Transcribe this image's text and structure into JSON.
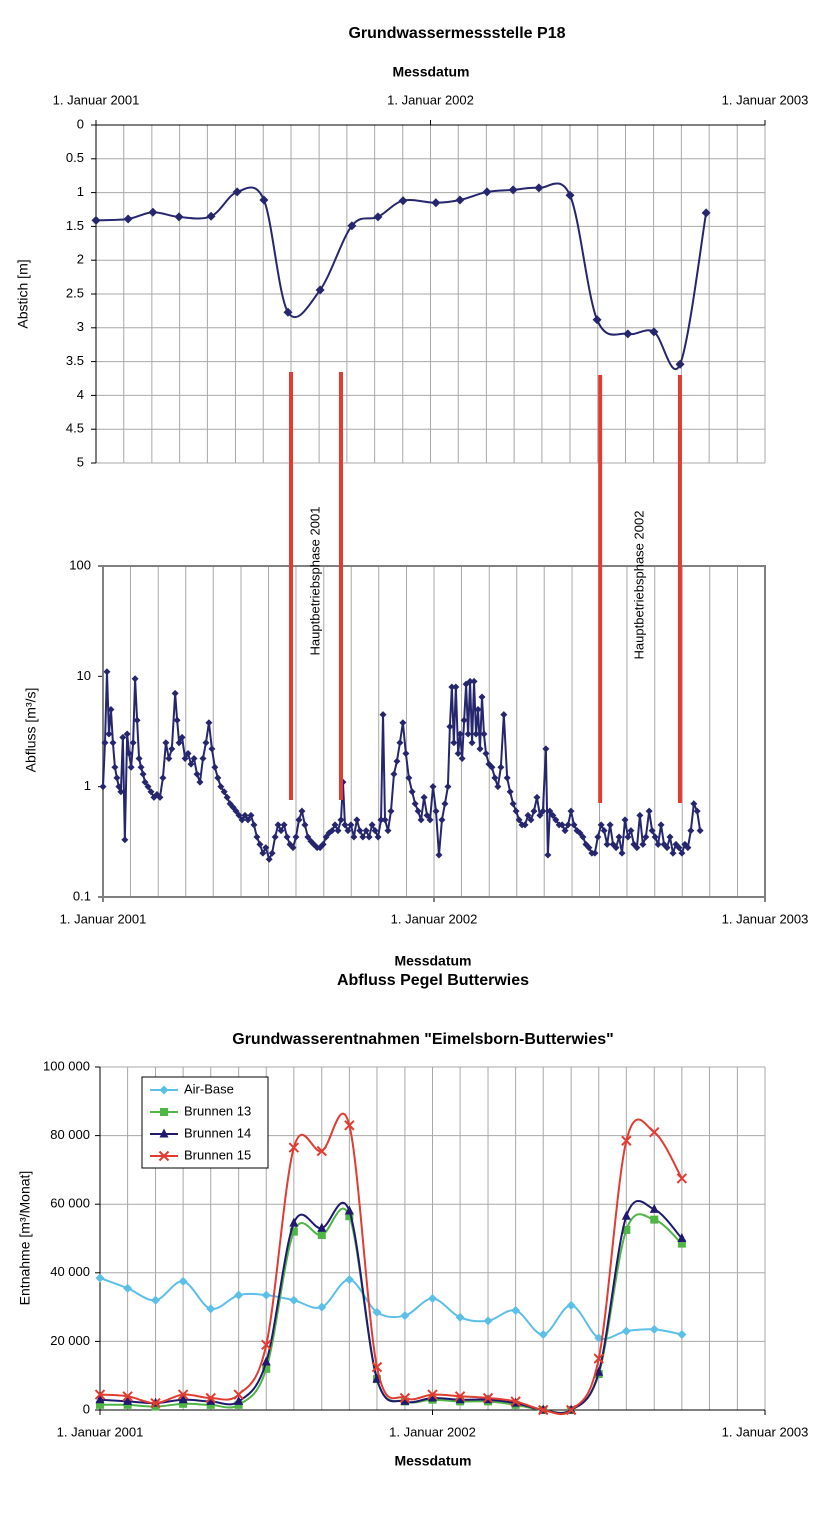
{
  "chart_data": [
    {
      "type": "line",
      "title": "Grundwassermessstelle P18",
      "xlabel": "Messdatum",
      "ylabel": "Abstich [m]",
      "x": [
        2001.0,
        2001.096,
        2001.17,
        2001.248,
        2001.344,
        2001.422,
        2001.502,
        2001.574,
        2001.67,
        2001.765,
        2001.843,
        2001.918,
        2002.016,
        2002.088,
        2002.169,
        2002.247,
        2002.324,
        2002.417,
        2002.498,
        2002.59,
        2002.668,
        2002.746,
        2002.824
      ],
      "values": [
        1.41,
        1.39,
        1.29,
        1.36,
        1.35,
        0.99,
        1.11,
        2.77,
        2.44,
        1.49,
        1.36,
        1.12,
        1.15,
        1.11,
        0.99,
        0.96,
        0.93,
        1.04,
        2.88,
        3.09,
        3.06,
        3.54,
        1.3
      ],
      "color": "#26266e",
      "marker": "diamond",
      "smooth": true,
      "xlim": [
        2001,
        2003
      ],
      "xticks": [
        {
          "value": 2001,
          "label": "1. Januar 2001"
        },
        {
          "value": 2002,
          "label": "1. Januar 2002"
        },
        {
          "value": 2003,
          "label": "1. Januar 2003"
        }
      ],
      "xminorticks": [
        2001.083,
        2001.167,
        2001.25,
        2001.333,
        2001.417,
        2001.5,
        2001.583,
        2001.667,
        2001.75,
        2001.833,
        2001.917,
        2002.083,
        2002.167,
        2002.25,
        2002.333,
        2002.417,
        2002.5,
        2002.583,
        2002.667,
        2002.75,
        2002.833,
        2002.917
      ],
      "ylim": [
        5,
        0
      ],
      "yticks": [
        0,
        0.5,
        1,
        1.5,
        2,
        2.5,
        3,
        3.5,
        4,
        4.5,
        5
      ],
      "grid": true
    },
    {
      "type": "line",
      "title": "Abfluss Pegel Butterwies",
      "xlabel": "Messdatum",
      "ylabel": "Abfluss [m³/s]",
      "yscale": "log",
      "x": [
        2001.0,
        2001.006,
        2001.012,
        2001.018,
        2001.024,
        2001.03,
        2001.036,
        2001.042,
        2001.048,
        2001.054,
        2001.06,
        2001.066,
        2001.073,
        2001.079,
        2001.085,
        2001.091,
        2001.097,
        2001.103,
        2001.109,
        2001.115,
        2001.121,
        2001.127,
        2001.136,
        2001.145,
        2001.154,
        2001.163,
        2001.172,
        2001.181,
        2001.19,
        2001.199,
        2001.208,
        2001.218,
        2001.224,
        2001.23,
        2001.239,
        2001.248,
        2001.257,
        2001.266,
        2001.275,
        2001.284,
        2001.293,
        2001.302,
        2001.311,
        2001.32,
        2001.329,
        2001.338,
        2001.347,
        2001.356,
        2001.366,
        2001.375,
        2001.384,
        2001.393,
        2001.402,
        2001.411,
        2001.42,
        2001.429,
        2001.438,
        2001.447,
        2001.456,
        2001.465,
        2001.474,
        2001.483,
        2001.492,
        2001.502,
        2001.511,
        2001.52,
        2001.529,
        2001.538,
        2001.547,
        2001.556,
        2001.565,
        2001.574,
        2001.583,
        2001.592,
        2001.601,
        2001.61,
        2001.619,
        2001.628,
        2001.637,
        2001.647,
        2001.656,
        2001.665,
        2001.674,
        2001.683,
        2001.692,
        2001.701,
        2001.71,
        2001.719,
        2001.725,
        2001.731,
        2001.74,
        2001.749,
        2001.758,
        2001.767,
        2001.776,
        2001.785,
        2001.795,
        2001.804,
        2001.813,
        2001.822,
        2001.831,
        2001.84,
        2001.846,
        2001.852,
        2001.861,
        2001.87,
        2001.879,
        2001.888,
        2001.897,
        2001.906,
        2001.915,
        2001.924,
        2001.934,
        2001.943,
        2001.952,
        2001.961,
        2001.97,
        2001.979,
        2001.988,
        2001.997,
        2002.006,
        2002.015,
        2002.024,
        2002.033,
        2002.042,
        2002.048,
        2002.054,
        2002.06,
        2002.066,
        2002.073,
        2002.079,
        2002.085,
        2002.091,
        2002.097,
        2002.103,
        2002.109,
        2002.115,
        2002.121,
        2002.127,
        2002.133,
        2002.139,
        2002.145,
        2002.151,
        2002.157,
        2002.166,
        2002.175,
        2002.184,
        2002.193,
        2002.202,
        2002.211,
        2002.221,
        2002.23,
        2002.239,
        2002.248,
        2002.257,
        2002.266,
        2002.275,
        2002.284,
        2002.293,
        2002.302,
        2002.311,
        2002.32,
        2002.329,
        2002.338,
        2002.344,
        2002.35,
        2002.359,
        2002.368,
        2002.378,
        2002.387,
        2002.396,
        2002.405,
        2002.414,
        2002.423,
        2002.432,
        2002.441,
        2002.45,
        2002.459,
        2002.468,
        2002.477,
        2002.486,
        2002.495,
        2002.505,
        2002.514,
        2002.523,
        2002.532,
        2002.541,
        2002.55,
        2002.559,
        2002.568,
        2002.577,
        2002.586,
        2002.595,
        2002.604,
        2002.613,
        2002.622,
        2002.631,
        2002.64,
        2002.65,
        2002.659,
        2002.668,
        2002.677,
        2002.686,
        2002.695,
        2002.704,
        2002.713,
        2002.722,
        2002.731,
        2002.74,
        2002.749,
        2002.758,
        2002.767,
        2002.776,
        2002.785,
        2002.795,
        2002.804
      ],
      "values": [
        1.0,
        2.5,
        11,
        3,
        5,
        2.5,
        1.5,
        1.2,
        1.0,
        0.9,
        2.8,
        0.33,
        3.0,
        2.0,
        1.5,
        2.5,
        9.5,
        4,
        1.8,
        1.5,
        1.3,
        1.1,
        1.0,
        0.9,
        0.8,
        0.85,
        0.8,
        1.2,
        2.5,
        1.8,
        2.2,
        7,
        4,
        2.5,
        2.8,
        1.8,
        2.0,
        1.6,
        1.8,
        1.3,
        1.1,
        1.8,
        2.5,
        3.8,
        2.2,
        1.5,
        1.2,
        1.0,
        0.9,
        0.8,
        0.7,
        0.65,
        0.6,
        0.55,
        0.5,
        0.55,
        0.5,
        0.55,
        0.45,
        0.35,
        0.3,
        0.25,
        0.28,
        0.22,
        0.25,
        0.35,
        0.45,
        0.4,
        0.45,
        0.35,
        0.3,
        0.28,
        0.35,
        0.5,
        0.6,
        0.45,
        0.35,
        0.32,
        0.3,
        0.28,
        0.28,
        0.3,
        0.35,
        0.38,
        0.4,
        0.45,
        0.4,
        0.5,
        1.1,
        0.45,
        0.4,
        0.45,
        0.35,
        0.5,
        0.4,
        0.35,
        0.4,
        0.35,
        0.45,
        0.4,
        0.35,
        0.5,
        4.5,
        0.5,
        0.4,
        0.6,
        1.3,
        1.7,
        2.5,
        3.8,
        2.0,
        1.2,
        0.9,
        0.7,
        0.6,
        0.5,
        0.8,
        0.55,
        0.5,
        1.0,
        0.6,
        0.24,
        0.5,
        0.7,
        1.0,
        3.5,
        8,
        2.5,
        8,
        2.0,
        3.0,
        1.8,
        4,
        8.5,
        3,
        9,
        2.5,
        9,
        3,
        5,
        2.2,
        6.5,
        3,
        2.0,
        1.6,
        1.5,
        1.2,
        1.0,
        1.5,
        4.5,
        1.2,
        0.9,
        0.7,
        0.6,
        0.5,
        0.45,
        0.45,
        0.55,
        0.5,
        0.6,
        0.8,
        0.55,
        0.6,
        2.2,
        0.24,
        0.6,
        0.55,
        0.5,
        0.45,
        0.45,
        0.4,
        0.45,
        0.6,
        0.45,
        0.4,
        0.38,
        0.35,
        0.3,
        0.28,
        0.25,
        0.25,
        0.35,
        0.45,
        0.4,
        0.3,
        0.45,
        0.3,
        0.28,
        0.35,
        0.25,
        0.5,
        0.35,
        0.4,
        0.3,
        0.28,
        0.55,
        0.3,
        0.35,
        0.6,
        0.4,
        0.35,
        0.3,
        0.45,
        0.3,
        0.28,
        0.35,
        0.25,
        0.3,
        0.28,
        0.25,
        0.3,
        0.28,
        0.4,
        0.7,
        0.6,
        0.4
      ],
      "color": "#26266e",
      "marker": "diamond",
      "smooth": false,
      "xlim": [
        2001,
        2003
      ],
      "xticks": [
        {
          "value": 2001,
          "label": "1. Januar 2001"
        },
        {
          "value": 2002,
          "label": "1. Januar 2002"
        },
        {
          "value": 2003,
          "label": "1. Januar 2003"
        }
      ],
      "xminorticks": [
        2001.083,
        2001.167,
        2001.25,
        2001.333,
        2001.417,
        2001.5,
        2001.583,
        2001.667,
        2001.75,
        2001.833,
        2001.917,
        2002.083,
        2002.167,
        2002.25,
        2002.333,
        2002.417,
        2002.5,
        2002.583,
        2002.667,
        2002.75,
        2002.833,
        2002.917
      ],
      "ylim": [
        0.1,
        100
      ],
      "yticks": [
        0.1,
        1,
        10,
        100
      ],
      "grid": true,
      "annotations": [
        {
          "text": "Hauptbetriebsphase 2001",
          "x": [
            2001.568,
            2001.719
          ],
          "color": "#e03c31"
        },
        {
          "text": "Hauptbetriebsphase 2002",
          "x": [
            2002.502,
            2002.743
          ],
          "color": "#e03c31"
        }
      ]
    },
    {
      "type": "line",
      "title": "Grundwasserentnahmen \"Eimelsborn-Butterwies\"",
      "xlabel": "Messdatum",
      "ylabel": "Entnahme [m³/Monat]",
      "x": [
        2001.0,
        2001.083,
        2001.167,
        2001.25,
        2001.333,
        2001.417,
        2001.5,
        2001.583,
        2001.667,
        2001.75,
        2001.833,
        2001.917,
        2002.0,
        2002.083,
        2002.167,
        2002.25,
        2002.333,
        2002.417,
        2002.5,
        2002.583,
        2002.667,
        2002.75
      ],
      "series": [
        {
          "name": "Air-Base",
          "color": "#5bbfe8",
          "marker": "diamond",
          "values": [
            38500,
            35500,
            32000,
            37500,
            29500,
            33500,
            33500,
            32000,
            30000,
            38000,
            28500,
            27500,
            32500,
            27000,
            26000,
            29000,
            22000,
            30500,
            21000,
            23000,
            23500,
            22000
          ]
        },
        {
          "name": "Brunnen 13",
          "color": "#4fb545",
          "marker": "square",
          "values": [
            1500,
            1500,
            1000,
            1800,
            1500,
            1500,
            12000,
            52000,
            51000,
            56500,
            9000,
            2500,
            3000,
            2500,
            2500,
            1500,
            0,
            0,
            10500,
            52500,
            55500,
            48500
          ]
        },
        {
          "name": "Brunnen 14",
          "color": "#1f1a6e",
          "marker": "triangle",
          "values": [
            3000,
            2500,
            2000,
            3000,
            2500,
            2500,
            14000,
            54500,
            53000,
            58000,
            9000,
            2500,
            3500,
            3000,
            3000,
            2000,
            0,
            0,
            11000,
            56500,
            58500,
            50000
          ]
        },
        {
          "name": "Brunnen 15",
          "color": "#e03c31",
          "marker": "x",
          "values": [
            4500,
            4000,
            2000,
            4500,
            3500,
            4500,
            19000,
            76500,
            75500,
            83000,
            12500,
            3500,
            4500,
            4000,
            3500,
            2500,
            0,
            0,
            15000,
            78500,
            81000,
            67500
          ]
        }
      ],
      "smooth": true,
      "xlim": [
        2001,
        2003
      ],
      "xticks": [
        {
          "value": 2001,
          "label": "1. Januar 2001"
        },
        {
          "value": 2002,
          "label": "1. Januar 2002"
        },
        {
          "value": 2003,
          "label": "1. Januar 2003"
        }
      ],
      "xminorticks": [
        2001.083,
        2001.167,
        2001.25,
        2001.333,
        2001.417,
        2001.5,
        2001.583,
        2001.667,
        2001.75,
        2001.833,
        2001.917,
        2002.083,
        2002.167,
        2002.25,
        2002.333,
        2002.417,
        2002.5,
        2002.583,
        2002.667,
        2002.75,
        2002.833,
        2002.917
      ],
      "ylim": [
        0,
        100000
      ],
      "yticks": [
        0,
        {
          "value": 20000,
          "label": "20 000"
        },
        {
          "value": 40000,
          "label": "40 000"
        },
        {
          "value": 60000,
          "label": "60 000"
        },
        {
          "value": 80000,
          "label": "80 000"
        },
        {
          "value": 100000,
          "label": "100 000"
        }
      ],
      "grid": true,
      "legend": "upper left"
    }
  ]
}
